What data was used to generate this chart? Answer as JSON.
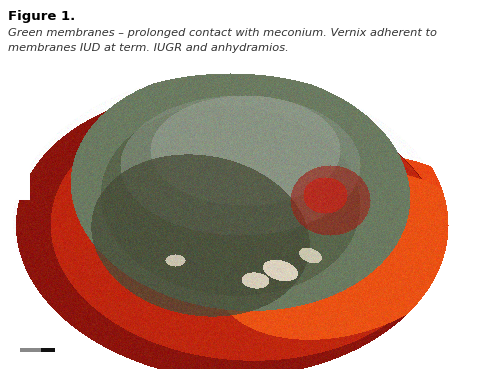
{
  "title": "Figure 1.",
  "caption_line1": "Green membranes – prolonged contact with meconium. Vernix adherent to",
  "caption_line2": "membranes IUD at term. IUGR and anhydramios.",
  "bg_color": "#ffffff",
  "title_fontsize": 9.5,
  "caption_fontsize": 8.2,
  "fig_width": 4.89,
  "fig_height": 3.69,
  "fig_dpi": 100
}
